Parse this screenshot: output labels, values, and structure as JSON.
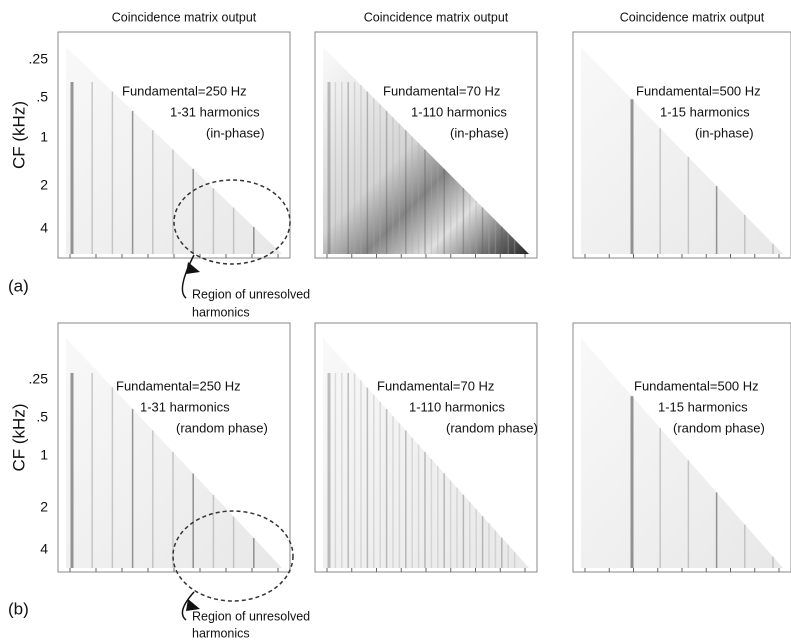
{
  "y_axis": {
    "label": "CF (kHz)",
    "ticks": [
      ".25",
      ".5",
      "1",
      "2",
      "4"
    ]
  },
  "rows": [
    {
      "label": "(a)",
      "annotation": [
        "Region of unresolved",
        "harmonics"
      ],
      "panels": [
        {
          "title": "Coincidence matrix output",
          "lines": [
            "Fundamental=250 Hz",
            "1-31 harmonics",
            "(in-phase)"
          ]
        },
        {
          "title": "Coincidence matrix output",
          "lines": [
            "Fundamental=70 Hz",
            "1-110 harmonics",
            "(in-phase)"
          ]
        },
        {
          "title": "Coincidence matrix output",
          "lines": [
            "Fundamental=500 Hz",
            "1-15 harmonics",
            "(in-phase)"
          ]
        }
      ]
    },
    {
      "label": "(b)",
      "annotation": [
        "Region of unresolved",
        "harmonics"
      ],
      "panels": [
        {
          "lines": [
            "Fundamental=250 Hz",
            "1-31 harmonics",
            "(random phase)"
          ]
        },
        {
          "lines": [
            "Fundamental=70 Hz",
            "1-110 harmonics",
            "(random phase)"
          ]
        },
        {
          "lines": [
            "Fundamental=500 Hz",
            "1-15 harmonics",
            "(random phase)"
          ]
        }
      ]
    }
  ]
}
